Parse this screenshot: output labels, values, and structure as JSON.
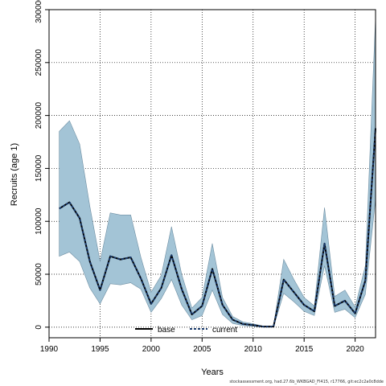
{
  "chart_data": {
    "type": "line",
    "title": "",
    "xlabel": "Years",
    "ylabel": "Recruits (age 1)",
    "xlim": [
      1990,
      2022
    ],
    "ylim": [
      -10000,
      300000
    ],
    "xticks": [
      1990,
      1995,
      2000,
      2005,
      2010,
      2015,
      2020
    ],
    "yticks": [
      0,
      50000,
      100000,
      150000,
      200000,
      250000,
      300000
    ],
    "grid": true,
    "legend_position": "bottom-center",
    "x": [
      1991,
      1992,
      1993,
      1994,
      1995,
      1996,
      1997,
      1998,
      1999,
      2000,
      2001,
      2002,
      2003,
      2004,
      2005,
      2006,
      2007,
      2008,
      2009,
      2010,
      2011,
      2012,
      2013,
      2014,
      2015,
      2016,
      2017,
      2018,
      2019,
      2020,
      2021,
      2022
    ],
    "series": [
      {
        "name": "base",
        "style": "solid",
        "color": "#000000",
        "values": [
          112000,
          118000,
          103000,
          62000,
          35000,
          67000,
          64000,
          66000,
          46000,
          22000,
          37000,
          68000,
          36000,
          12000,
          20000,
          55000,
          21000,
          7000,
          3000,
          2000,
          500,
          500,
          45000,
          33000,
          21000,
          15000,
          79000,
          20000,
          25000,
          13000,
          44000,
          188000
        ]
      },
      {
        "name": "current",
        "style": "dashed",
        "color": "#1a3a6b",
        "values": [
          112000,
          118000,
          103000,
          62000,
          35000,
          67000,
          64000,
          66000,
          46000,
          22000,
          37000,
          68000,
          36000,
          12000,
          20000,
          55000,
          21000,
          7000,
          3000,
          2000,
          500,
          500,
          45000,
          33000,
          21000,
          15000,
          79000,
          20000,
          25000,
          13000,
          44000,
          188000
        ]
      }
    ],
    "band": {
      "color": "#a3c4d6",
      "lower": [
        67000,
        71000,
        62000,
        37000,
        22000,
        41000,
        40000,
        42000,
        36000,
        14000,
        27000,
        45000,
        21000,
        7000,
        11000,
        35000,
        12000,
        3500,
        1500,
        800,
        100,
        100,
        32000,
        24000,
        15000,
        11000,
        58000,
        14000,
        17000,
        9000,
        31000,
        121000
      ],
      "upper": [
        185000,
        195000,
        173000,
        114000,
        62000,
        108000,
        106000,
        106000,
        66000,
        33000,
        49000,
        95000,
        50000,
        18000,
        28000,
        79000,
        28000,
        10000,
        5000,
        3200,
        1000,
        1000,
        64000,
        45000,
        28000,
        20000,
        113000,
        29000,
        35000,
        19000,
        58000,
        293000
      ]
    },
    "footnote": "stockassessment.org, had.27.6b_WKBGAD_Fl415, r17766, git:ec2c2a0c8dde"
  }
}
